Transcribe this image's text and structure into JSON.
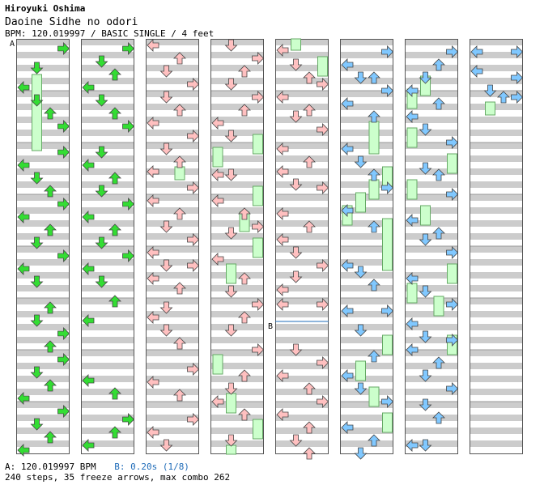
{
  "header": {
    "artist": "Hiroyuki Oshima",
    "song": "Daoine Sidhe no odori",
    "meta": "BPM: 120.019997 / BASIC SINGLE / 4 feet"
  },
  "markers": {
    "a": "A",
    "b": "B"
  },
  "footer": {
    "bpm_a": "A: 120.019997 BPM",
    "bpm_b": "B: 0.20s (1/8)",
    "stats": "240 steps, 35 freeze arrows, max combo 262"
  },
  "colors": {
    "stripe": "#cccccc",
    "green_arrow": "#33dd33",
    "red_arrow": "#ffc0c0",
    "blue_arrow": "#80c8ff",
    "freeze_fill": "#ccffcc",
    "freeze_stroke": "#66aa66"
  },
  "chart_data": {
    "type": "table",
    "columns": 8,
    "measures_per_column": 8,
    "lanes": [
      "left",
      "down",
      "up",
      "right"
    ],
    "stops": [
      {
        "column": 5,
        "measure": 5.5,
        "label": "B"
      }
    ]
  }
}
